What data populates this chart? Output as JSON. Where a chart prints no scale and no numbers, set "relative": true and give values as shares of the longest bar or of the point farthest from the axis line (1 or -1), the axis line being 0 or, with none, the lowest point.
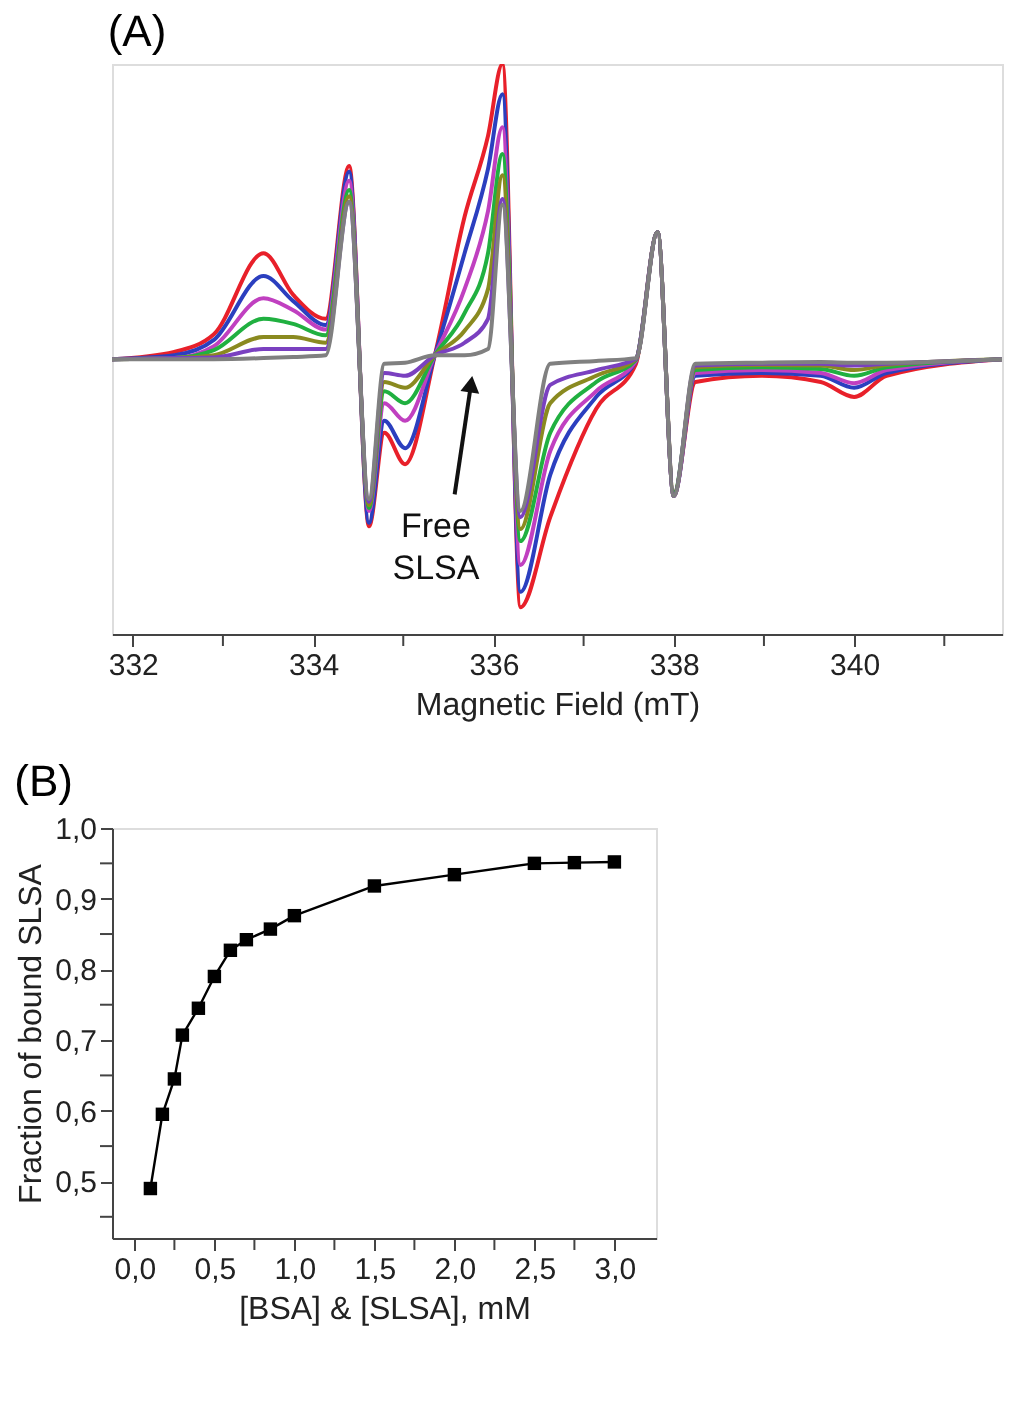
{
  "chart_data": [
    {
      "type": "line",
      "title": "(A)",
      "xlabel": "Magnetic Field (mT)",
      "relative": true,
      "marker": "none",
      "line_style": "solid",
      "x": [
        331.77,
        332.46,
        332.9,
        333.45,
        333.78,
        334.14,
        334.4,
        334.62,
        334.79,
        335.02,
        335.35,
        335.68,
        335.94,
        336.1,
        336.3,
        336.63,
        337.14,
        337.58,
        337.82,
        338.0,
        338.24,
        338.97,
        339.63,
        340.0,
        340.36,
        341.64
      ],
      "xlim": [
        331.77,
        341.64
      ],
      "xticks": [
        332,
        {
          "value": 333,
          "label": null
        },
        334,
        {
          "value": 335,
          "label": null
        },
        336,
        {
          "value": 337,
          "label": null
        },
        338,
        {
          "value": 339,
          "label": null
        },
        340,
        {
          "value": 341,
          "label": null
        }
      ],
      "series": [
        {
          "color": "#e8202a",
          "values": [
            0.482,
            0.495,
            0.526,
            0.668,
            0.595,
            0.553,
            0.821,
            0.189,
            0.353,
            0.298,
            0.489,
            0.732,
            0.874,
            1.0,
            0.047,
            0.205,
            0.395,
            0.474,
            0.705,
            0.247,
            0.442,
            0.453,
            0.442,
            0.416,
            0.453,
            0.482
          ]
        },
        {
          "color": "#2b3fbf",
          "values": [
            0.482,
            0.489,
            0.516,
            0.628,
            0.584,
            0.542,
            0.811,
            0.195,
            0.374,
            0.326,
            0.489,
            0.668,
            0.816,
            0.947,
            0.074,
            0.279,
            0.416,
            0.479,
            0.705,
            0.242,
            0.453,
            0.458,
            0.453,
            0.432,
            0.458,
            0.482
          ]
        },
        {
          "color": "#c040c0",
          "values": [
            0.482,
            0.484,
            0.505,
            0.589,
            0.568,
            0.534,
            0.795,
            0.216,
            0.405,
            0.374,
            0.489,
            0.605,
            0.742,
            0.889,
            0.121,
            0.321,
            0.426,
            0.479,
            0.705,
            0.242,
            0.458,
            0.463,
            0.458,
            0.44,
            0.463,
            0.482
          ]
        },
        {
          "color": "#20b040",
          "values": [
            0.482,
            0.484,
            0.498,
            0.553,
            0.544,
            0.524,
            0.779,
            0.221,
            0.426,
            0.405,
            0.489,
            0.563,
            0.668,
            0.842,
            0.163,
            0.353,
            0.442,
            0.481,
            0.705,
            0.247,
            0.463,
            0.468,
            0.465,
            0.453,
            0.468,
            0.482
          ]
        },
        {
          "color": "#8a8a20",
          "values": [
            0.482,
            0.484,
            0.489,
            0.521,
            0.521,
            0.511,
            0.768,
            0.226,
            0.442,
            0.432,
            0.489,
            0.532,
            0.605,
            0.805,
            0.184,
            0.405,
            0.453,
            0.482,
            0.705,
            0.242,
            0.468,
            0.472,
            0.471,
            0.463,
            0.472,
            0.482
          ]
        },
        {
          "color": "#7a40c0",
          "values": [
            0.482,
            0.484,
            0.485,
            0.5,
            0.5,
            0.5,
            0.758,
            0.232,
            0.458,
            0.453,
            0.489,
            0.511,
            0.553,
            0.763,
            0.205,
            0.437,
            0.463,
            0.483,
            0.705,
            0.242,
            0.471,
            0.474,
            0.474,
            0.471,
            0.474,
            0.482
          ]
        },
        {
          "color": "#808080",
          "values": [
            0.482,
            0.482,
            0.482,
            0.484,
            0.486,
            0.489,
            0.758,
            0.237,
            0.474,
            0.476,
            0.489,
            0.489,
            0.5,
            0.753,
            0.216,
            0.474,
            0.479,
            0.484,
            0.705,
            0.242,
            0.474,
            0.476,
            0.477,
            0.476,
            0.476,
            0.482
          ]
        }
      ],
      "annotations": [
        "Free SLSA"
      ]
    },
    {
      "type": "line",
      "title": "(B)",
      "xlabel": "[BSA] & [SLSA], mM",
      "ylabel": "Fraction of bound SLSA",
      "marker": "square",
      "line_style": "solid",
      "x": [
        0.1,
        0.175,
        0.25,
        0.3,
        0.4,
        0.5,
        0.6,
        0.7,
        0.85,
        1.0,
        1.5,
        2.0,
        2.5,
        2.75,
        3.0
      ],
      "xlim": [
        -0.14,
        3.26
      ],
      "ylim": [
        0.42,
        1.0
      ],
      "xticks": [
        {
          "value": 0,
          "label": "0,0"
        },
        {
          "value": 0.25,
          "label": null
        },
        {
          "value": 0.5,
          "label": "0,5"
        },
        {
          "value": 0.75,
          "label": null
        },
        {
          "value": 1.0,
          "label": "1,0"
        },
        {
          "value": 1.25,
          "label": null
        },
        {
          "value": 1.5,
          "label": "1,5"
        },
        {
          "value": 1.75,
          "label": null
        },
        {
          "value": 2.0,
          "label": "2,0"
        },
        {
          "value": 2.25,
          "label": null
        },
        {
          "value": 2.5,
          "label": "2,5"
        },
        {
          "value": 2.75,
          "label": null
        },
        {
          "value": 3.0,
          "label": "3,0"
        }
      ],
      "yticks": [
        {
          "value": 0.45,
          "label": null
        },
        {
          "value": 0.5,
          "label": "0,5"
        },
        {
          "value": 0.55,
          "label": null
        },
        {
          "value": 0.6,
          "label": "0,6"
        },
        {
          "value": 0.65,
          "label": null
        },
        {
          "value": 0.7,
          "label": "0,7"
        },
        {
          "value": 0.75,
          "label": null
        },
        {
          "value": 0.8,
          "label": "0,8"
        },
        {
          "value": 0.85,
          "label": null
        },
        {
          "value": 0.9,
          "label": "0,9"
        },
        {
          "value": 0.95,
          "label": null
        },
        {
          "value": 1.0,
          "label": "1,0"
        }
      ],
      "series": [
        {
          "color": "#000000",
          "values": [
            0.49,
            0.595,
            0.645,
            0.707,
            0.745,
            0.79,
            0.827,
            0.842,
            0.857,
            0.876,
            0.918,
            0.934,
            0.95,
            0.951,
            0.952
          ]
        }
      ]
    }
  ]
}
